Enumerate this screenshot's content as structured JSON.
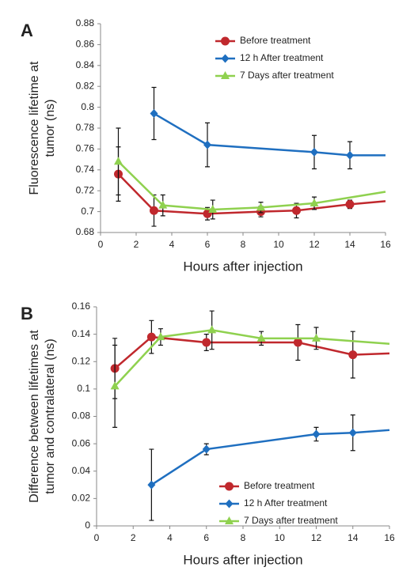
{
  "chart_data": [
    {
      "type": "line",
      "panel": "A",
      "ylabel": [
        "Fluorescence lifetime at",
        "tumor (ns)"
      ],
      "xlabel": "Hours after injection",
      "xlim": [
        0,
        16
      ],
      "xticks": [
        0,
        2,
        4,
        6,
        8,
        10,
        12,
        14,
        16
      ],
      "ylim": [
        0.68,
        0.88
      ],
      "yticks": [
        0.68,
        0.7,
        0.72,
        0.74,
        0.76,
        0.78,
        0.8,
        0.82,
        0.84,
        0.86,
        0.88
      ],
      "legend": "upper right",
      "series": [
        {
          "name": "Before treatment",
          "color": "#c0282d",
          "marker": "circle",
          "x": [
            1,
            3,
            6,
            9,
            11,
            14,
            16
          ],
          "values": [
            0.736,
            0.701,
            0.698,
            0.7,
            0.701,
            0.707,
            0.71
          ],
          "errors": [
            0.026,
            0.015,
            0.006,
            0.005,
            0.007,
            0.004,
            null
          ]
        },
        {
          "name": "12 h After treatment",
          "color": "#1f6fc0",
          "marker": "diamond",
          "x": [
            3,
            6,
            12,
            14,
            16
          ],
          "values": [
            0.794,
            0.764,
            0.757,
            0.754,
            0.754
          ],
          "errors": [
            0.025,
            0.021,
            0.016,
            0.013,
            null
          ]
        },
        {
          "name": "7 Days after treatment",
          "color": "#8fd14f",
          "marker": "triangle",
          "x": [
            1,
            3.5,
            6.3,
            9,
            12,
            16
          ],
          "values": [
            0.748,
            0.706,
            0.702,
            0.704,
            0.708,
            0.719
          ],
          "errors": [
            0.032,
            0.01,
            0.009,
            0.005,
            0.006,
            null
          ]
        }
      ]
    },
    {
      "type": "line",
      "panel": "B",
      "ylabel": [
        "Difference between lifetimes at",
        "tumor and contralateral (ns)"
      ],
      "xlabel": "Hours after injection",
      "xlim": [
        0,
        16
      ],
      "xticks": [
        0,
        2,
        4,
        6,
        8,
        10,
        12,
        14,
        16
      ],
      "ylim": [
        0,
        0.16
      ],
      "yticks": [
        0,
        0.02,
        0.04,
        0.06,
        0.08,
        0.1,
        0.12,
        0.14,
        0.16
      ],
      "legend": "lower right",
      "series": [
        {
          "name": "Before treatment",
          "color": "#c0282d",
          "marker": "circle",
          "x": [
            1,
            3,
            6,
            11,
            14,
            16
          ],
          "values": [
            0.115,
            0.138,
            0.134,
            0.134,
            0.125,
            0.126
          ],
          "errors": [
            0.022,
            0.012,
            0.006,
            0.013,
            0.017,
            null
          ]
        },
        {
          "name": "12 h After treatment",
          "color": "#1f6fc0",
          "marker": "diamond",
          "x": [
            3,
            6,
            12,
            14,
            16
          ],
          "values": [
            0.03,
            0.056,
            0.067,
            0.068,
            0.07
          ],
          "errors": [
            0.026,
            0.004,
            0.005,
            0.013,
            null
          ]
        },
        {
          "name": "7 Days after treatment",
          "color": "#8fd14f",
          "marker": "triangle",
          "x": [
            1,
            3.5,
            6.3,
            9,
            12,
            16
          ],
          "values": [
            0.102,
            0.138,
            0.143,
            0.137,
            0.137,
            0.133
          ],
          "errors": [
            0.03,
            0.006,
            0.014,
            0.005,
            0.008,
            null
          ]
        }
      ]
    }
  ]
}
